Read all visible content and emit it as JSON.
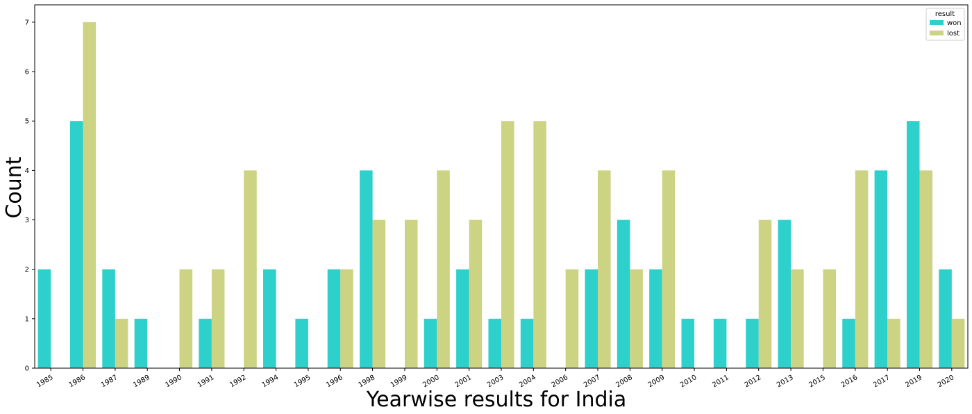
{
  "chart_data": {
    "type": "bar",
    "title": "",
    "xlabel": "Yearwise results for India",
    "ylabel": "Count",
    "ylim": [
      0,
      7.35
    ],
    "yticks": [
      0,
      1,
      2,
      3,
      4,
      5,
      6,
      7
    ],
    "grid": false,
    "legend": {
      "title": "result",
      "placement": "top-right"
    },
    "categories": [
      "1985",
      "1986",
      "1987",
      "1989",
      "1990",
      "1991",
      "1992",
      "1994",
      "1995",
      "1996",
      "1998",
      "1999",
      "2000",
      "2001",
      "2003",
      "2004",
      "2006",
      "2007",
      "2008",
      "2009",
      "2010",
      "2011",
      "2012",
      "2013",
      "2015",
      "2016",
      "2017",
      "2019",
      "2020"
    ],
    "series": [
      {
        "name": "won",
        "color": "#2ed0cc",
        "values": [
          2,
          5,
          2,
          1,
          0,
          1,
          0,
          2,
          1,
          2,
          4,
          0,
          1,
          2,
          1,
          1,
          0,
          2,
          3,
          2,
          1,
          1,
          1,
          3,
          0,
          1,
          4,
          5,
          2
        ]
      },
      {
        "name": "lost",
        "color": "#ccd483",
        "values": [
          0,
          7,
          1,
          0,
          2,
          2,
          4,
          0,
          0,
          2,
          3,
          3,
          4,
          3,
          5,
          5,
          2,
          4,
          2,
          4,
          0,
          0,
          3,
          2,
          2,
          4,
          1,
          4,
          1
        ]
      }
    ]
  }
}
